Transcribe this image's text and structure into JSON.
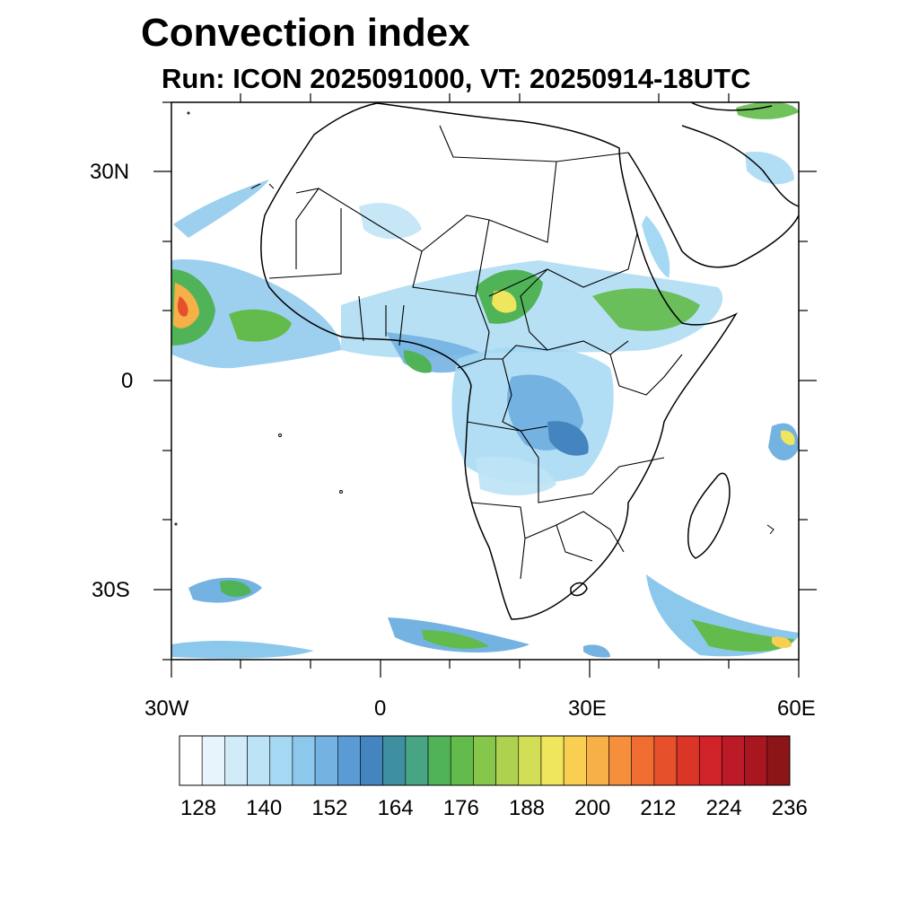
{
  "title": "Convection index",
  "subtitle": "Run: ICON 2025091000,  VT: 20250914-18UTC",
  "axes": {
    "lon_labels": [
      "30W",
      "0",
      "30E",
      "60E"
    ],
    "lat_labels": [
      "30N",
      "0",
      "30S"
    ],
    "lon_range": [
      -30,
      60
    ],
    "lat_range": [
      -40,
      40
    ]
  },
  "colorbar": {
    "colors": [
      "#ffffff",
      "#e8f4fc",
      "#d2ebf8",
      "#bde3f6",
      "#a5d8f3",
      "#8cc8ec",
      "#74b2e2",
      "#5b9bd5",
      "#4585bf",
      "#3e8fa0",
      "#47a583",
      "#50b358",
      "#62bb4a",
      "#86c64a",
      "#aed150",
      "#d3de57",
      "#f0e65d",
      "#f9cf52",
      "#f7b048",
      "#f58f3c",
      "#ef6d31",
      "#e6502a",
      "#db3528",
      "#cf2229",
      "#bd1a28",
      "#a8171f",
      "#8c1518"
    ],
    "tick_labels": [
      "128",
      "140",
      "152",
      "164",
      "176",
      "188",
      "200",
      "212",
      "224",
      "236"
    ]
  },
  "map_features": {
    "land": "Africa",
    "islands": [
      "Madagascar",
      "Lesotho"
    ]
  }
}
